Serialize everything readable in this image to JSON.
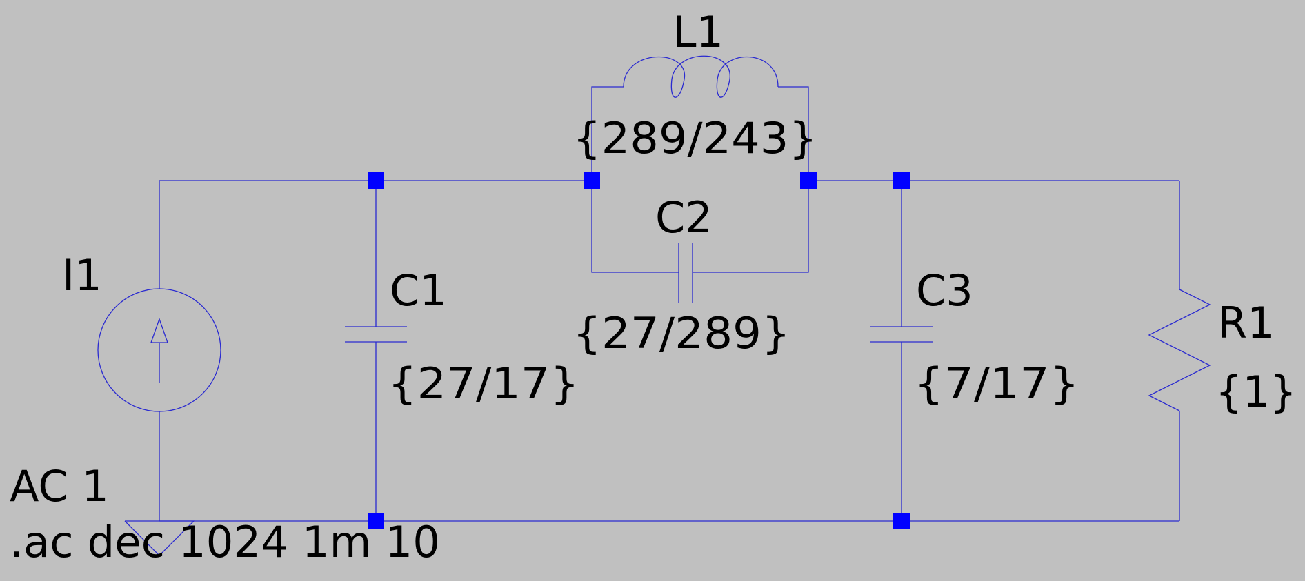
{
  "colors": {
    "background": "#c0c0c0",
    "wire": "#2a2ad0",
    "junction": "#0000ff",
    "text": "#000000"
  },
  "components": {
    "I1": {
      "name": "I1",
      "value": "AC 1"
    },
    "C1": {
      "name": "C1",
      "value": "{27/17}"
    },
    "L1": {
      "name": "L1",
      "value": "{289/243}"
    },
    "C2": {
      "name": "C2",
      "value": "{27/289}"
    },
    "C3": {
      "name": "C3",
      "value": "{7/17}"
    },
    "R1": {
      "name": "R1",
      "value": "{1}"
    }
  },
  "directive": ".ac dec 1024 1m 10"
}
